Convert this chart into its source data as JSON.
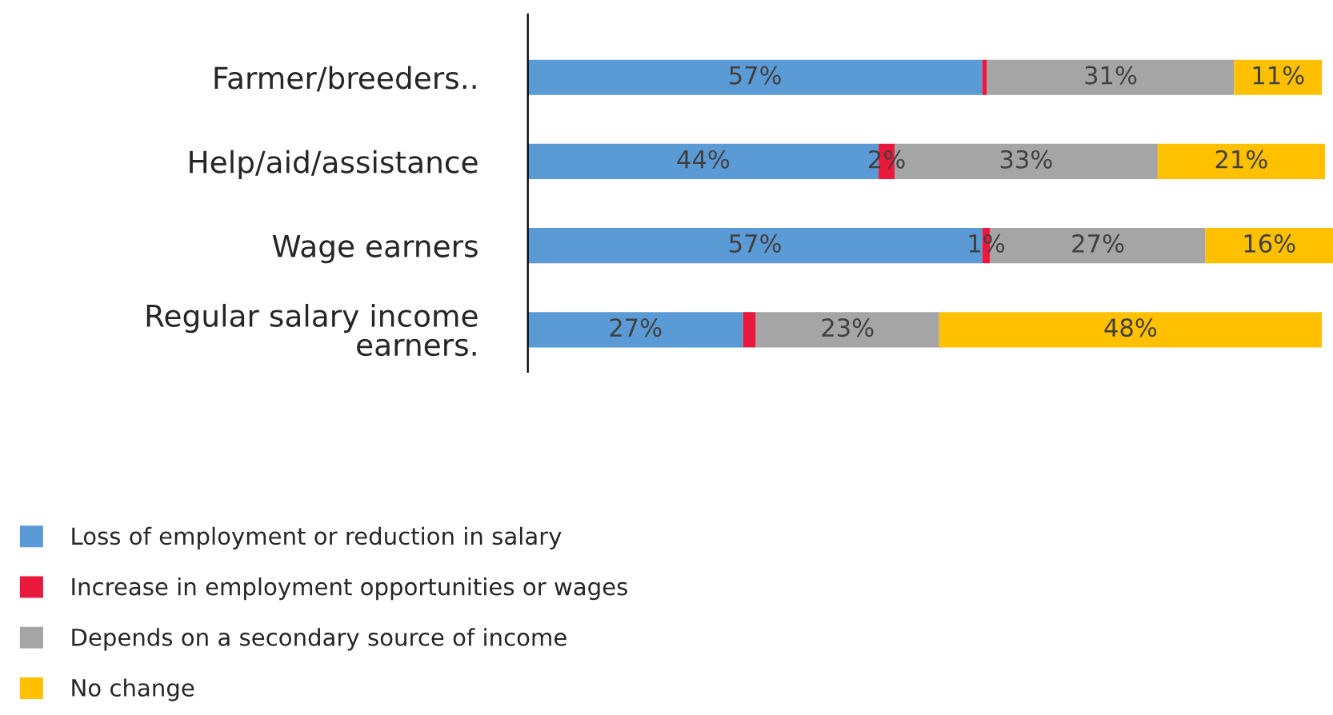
{
  "chart_data": {
    "type": "bar",
    "orientation": "horizontal",
    "stacked": true,
    "xlim": [
      0,
      101
    ],
    "legend": "bottom left",
    "categories": [
      "Farmer/breeders..",
      "Help/aid/assistance",
      "Wage earners",
      "Regular salary income\nearners."
    ],
    "series": [
      {
        "name": "Loss of employment or reduction in salary",
        "color": "#5b9bd5",
        "values": [
          57,
          44,
          57,
          27
        ],
        "value_labels": [
          "57%",
          "44%",
          "57%",
          "27%"
        ]
      },
      {
        "name": "Increase in employment opportunities or wages",
        "color": "#e8193c",
        "values": [
          0.6,
          2,
          1,
          1.6
        ],
        "value_labels": [
          null,
          "2%",
          "1%",
          null
        ]
      },
      {
        "name": "Depends on a secondary source of income",
        "color": "#a5a5a5",
        "values": [
          31,
          33,
          27,
          23
        ],
        "value_labels": [
          "31%",
          "33%",
          "27%",
          "23%"
        ]
      },
      {
        "name": "No change",
        "color": "#ffc000",
        "values": [
          11,
          21,
          16,
          48
        ],
        "value_labels": [
          "11%",
          "21%",
          "16%",
          "48%"
        ]
      }
    ]
  }
}
